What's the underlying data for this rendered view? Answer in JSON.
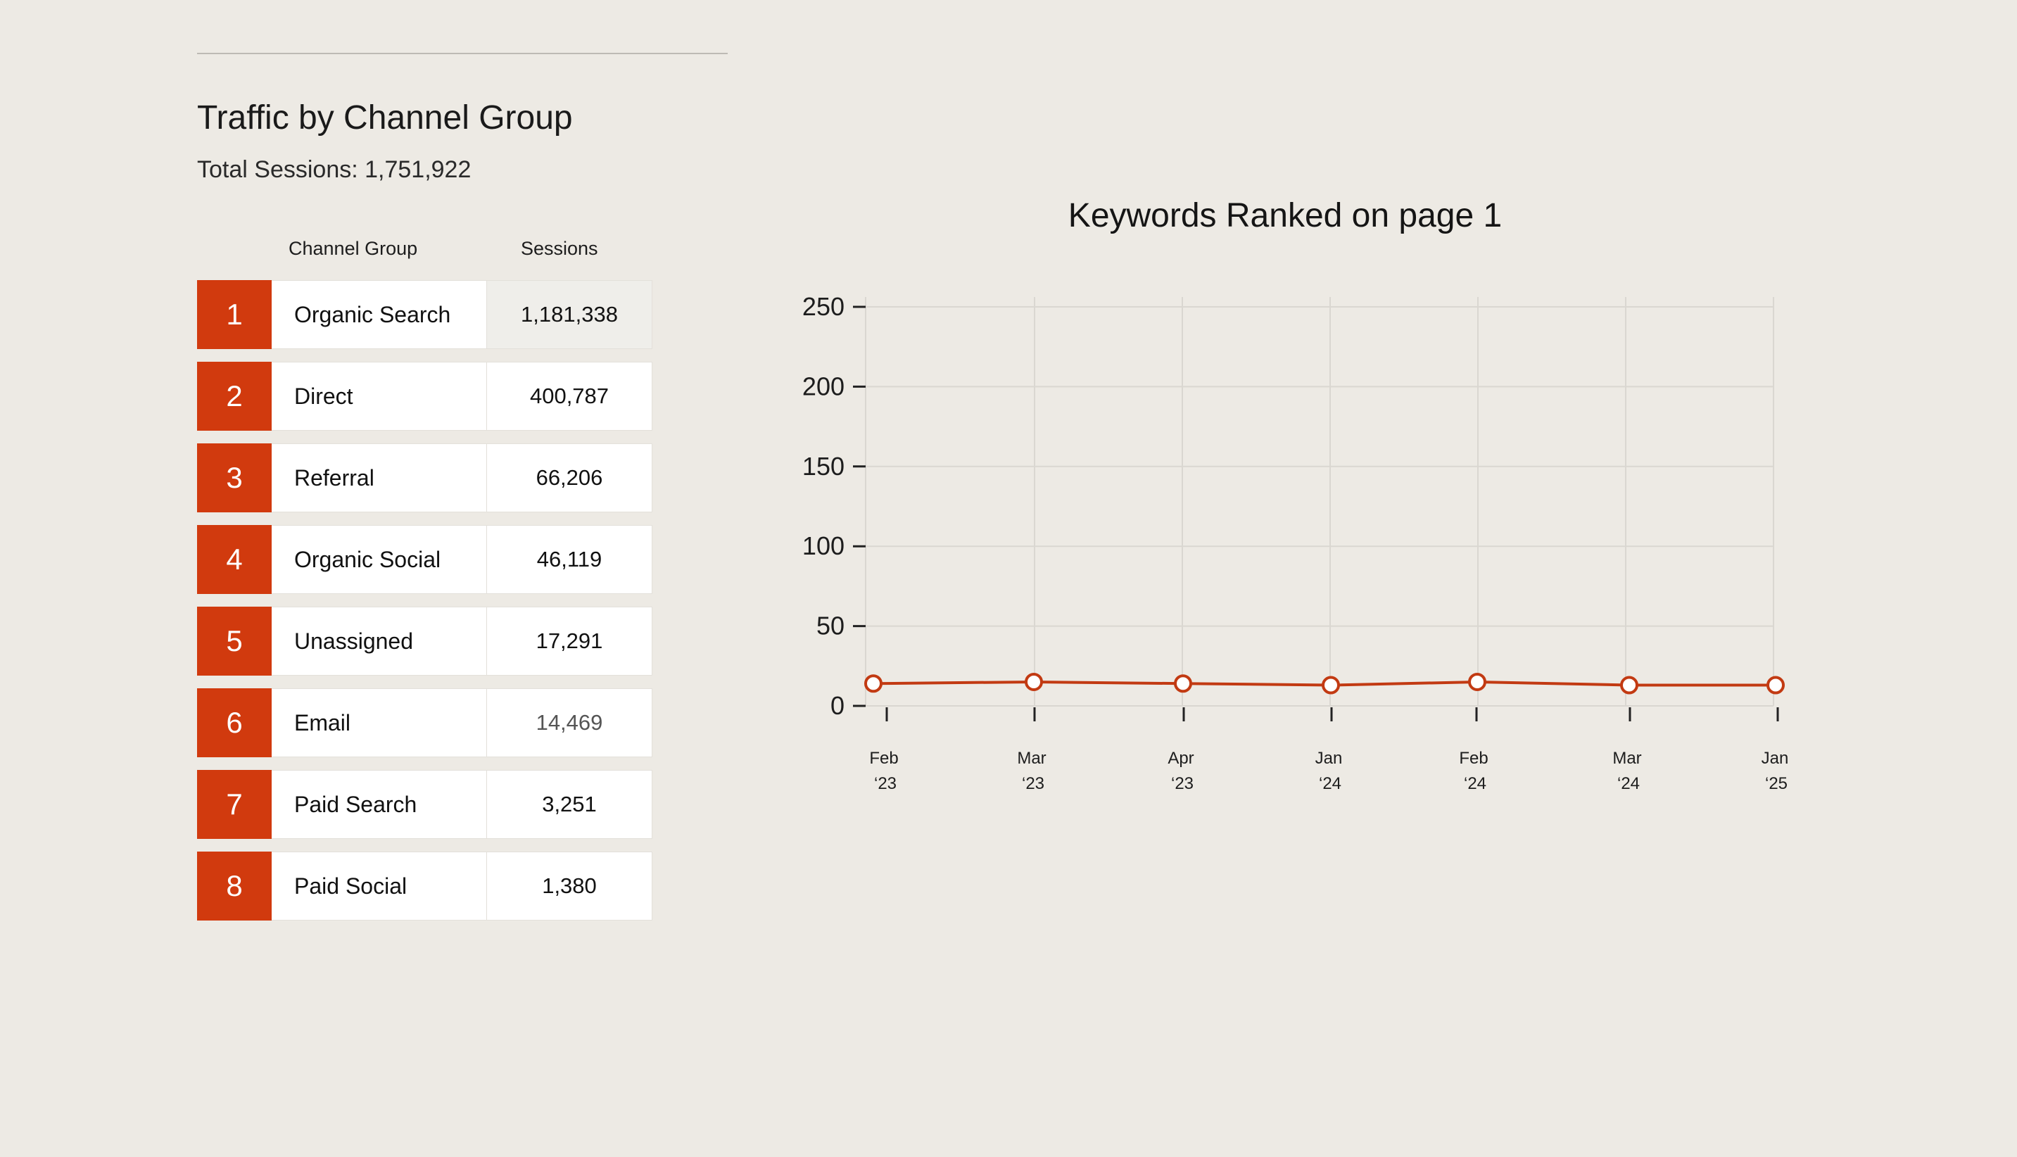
{
  "header": {
    "title": "Traffic by Channel Group",
    "total_sessions": "Total Sessions: 1,751,922"
  },
  "table": {
    "columns": [
      "Channel Group",
      "Sessions"
    ],
    "rows": [
      {
        "rank": "1",
        "channel": "Organic Search",
        "sessions": "1,181,338"
      },
      {
        "rank": "2",
        "channel": "Direct",
        "sessions": "400,787"
      },
      {
        "rank": "3",
        "channel": "Referral",
        "sessions": "66,206"
      },
      {
        "rank": "4",
        "channel": "Organic Social",
        "sessions": "46,119"
      },
      {
        "rank": "5",
        "channel": "Unassigned",
        "sessions": "17,291"
      },
      {
        "rank": "6",
        "channel": "Email",
        "sessions": "14,469"
      },
      {
        "rank": "7",
        "channel": "Paid Search",
        "sessions": "3,251"
      },
      {
        "rank": "8",
        "channel": "Paid Social",
        "sessions": "1,380"
      }
    ]
  },
  "colors": {
    "accent": "#D13A0E",
    "line": "#C23A12",
    "grid": "#DAD7D1",
    "background": "#EDEAE4"
  },
  "chart_data": {
    "type": "line",
    "title": "Keywords Ranked on page 1",
    "xlabel": "",
    "ylabel": "",
    "categories": [
      [
        "Feb",
        "‘23"
      ],
      [
        "Mar",
        "‘23"
      ],
      [
        "Apr",
        "‘23"
      ],
      [
        "Jan",
        "‘24"
      ],
      [
        "Feb",
        "‘24"
      ],
      [
        "Mar",
        "‘24"
      ],
      [
        "Jan",
        "‘25"
      ]
    ],
    "series": [
      {
        "values": [
          14,
          15,
          14,
          13,
          15,
          13,
          13
        ]
      }
    ],
    "ylim": [
      0,
      250
    ],
    "yticks": [
      0,
      50,
      100,
      150,
      200,
      250
    ],
    "grid": true,
    "legend": "none"
  }
}
